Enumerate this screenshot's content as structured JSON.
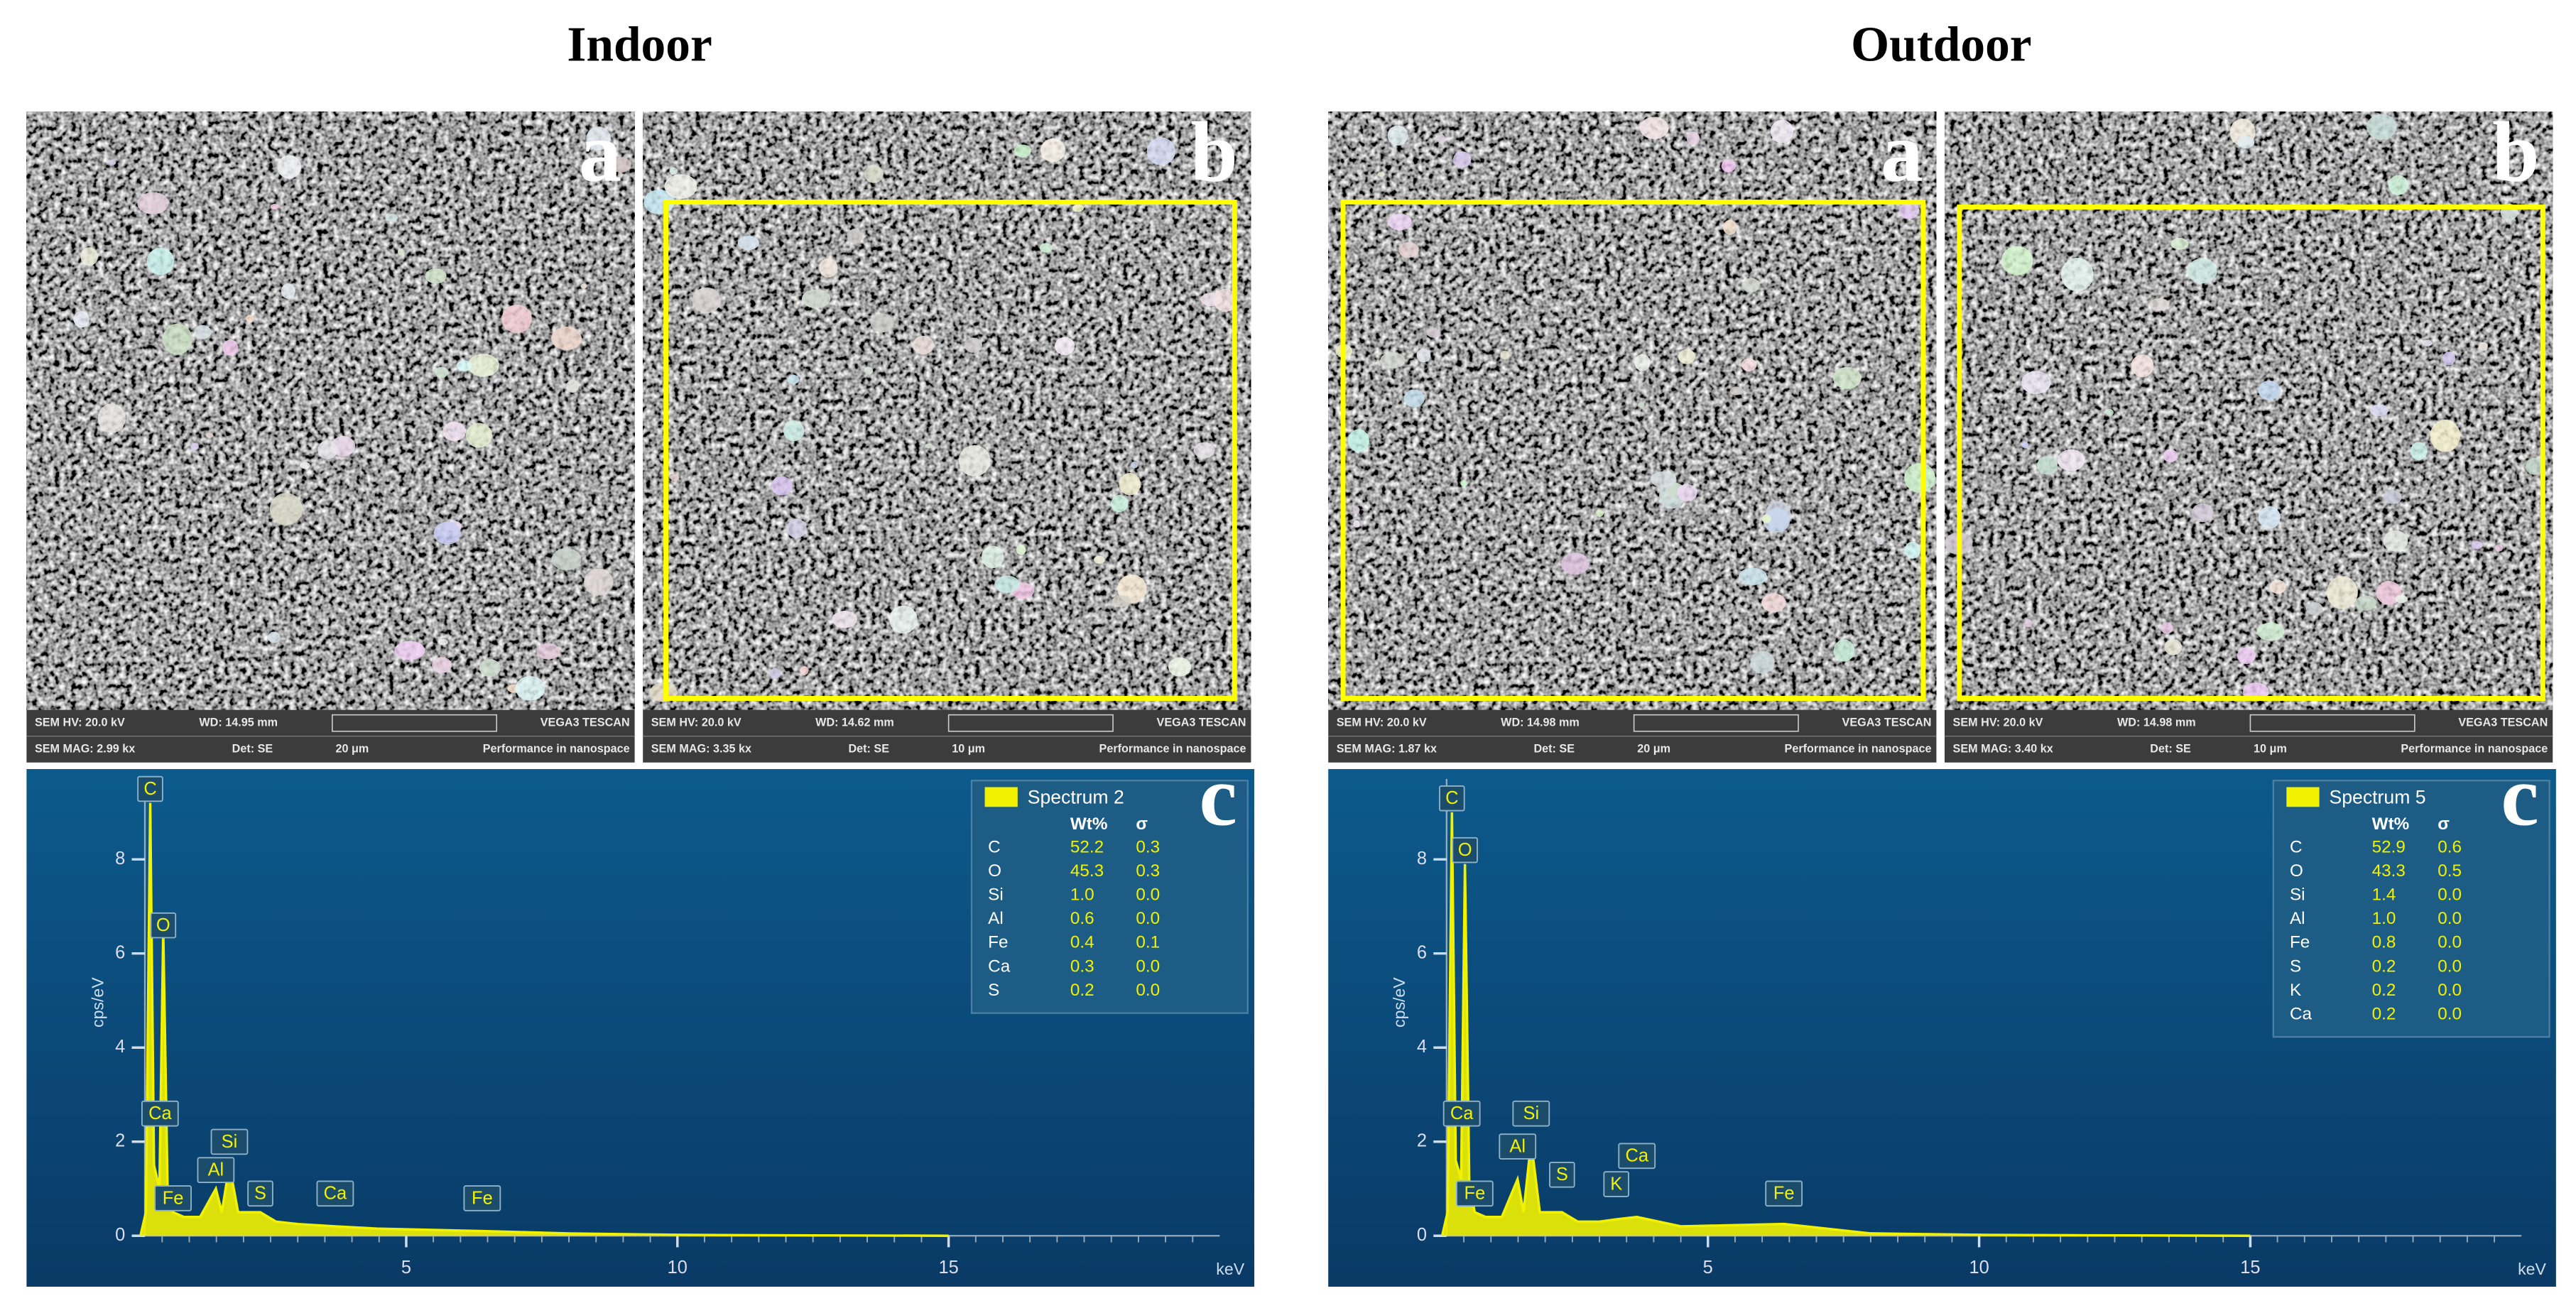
{
  "figure": {
    "panels": [
      {
        "title": "Indoor",
        "images": [
          {
            "letter": "a",
            "info": [
              [
                "SEM HV: 20.0 kV",
                "WD: 14.95 mm",
                "VEGA3 TESCAN"
              ],
              [
                "SEM MAG: 2.99 kx",
                "Det: SE",
                "20 μm",
                "Performance in nanospace"
              ]
            ]
          },
          {
            "letter": "b",
            "info": [
              [
                "SEM HV: 20.0 kV",
                "WD: 14.62 mm",
                "VEGA3 TESCAN"
              ],
              [
                "SEM MAG: 3.35 kx",
                "Det: SE",
                "10 μm",
                "Performance in nanospace"
              ]
            ]
          }
        ]
      },
      {
        "title": "Outdoor",
        "images": [
          {
            "letter": "a",
            "info": [
              [
                "SEM HV: 20.0 kV",
                "WD: 14.98 mm",
                "VEGA3 TESCAN"
              ],
              [
                "SEM MAG: 1.87 kx",
                "Det: SE",
                "20 μm",
                "Performance in nanospace"
              ]
            ]
          },
          {
            "letter": "b",
            "info": [
              [
                "SEM HV: 20.0 kV",
                "WD: 14.98 mm",
                "VEGA3 TESCAN"
              ],
              [
                "SEM MAG: 3.40 kx",
                "Det: SE",
                "10 μm",
                "Performance in nanospace"
              ]
            ]
          }
        ]
      }
    ]
  },
  "chart_data": [
    {
      "type": "area",
      "panel_letter": "c",
      "ylabel": "cps/eV",
      "xlabel": "keV",
      "xlim": [
        0,
        20
      ],
      "ylim": [
        0,
        9.5
      ],
      "xticks": [
        5,
        10,
        15
      ],
      "yticks": [
        0,
        2,
        4,
        6,
        8
      ],
      "series": [
        {
          "name": "Spectrum 2",
          "color": "#f2f200",
          "x": [
            0.1,
            0.2,
            0.28,
            0.35,
            0.45,
            0.52,
            0.6,
            0.7,
            0.9,
            1.2,
            1.49,
            1.6,
            1.74,
            1.9,
            2.31,
            2.6,
            3.0,
            3.69,
            4.5,
            6.4,
            8,
            10,
            12,
            15
          ],
          "values": [
            0,
            0.5,
            9.2,
            1.5,
            1.0,
            6.5,
            1.0,
            0.5,
            0.4,
            0.4,
            1.0,
            0.5,
            1.5,
            0.5,
            0.5,
            0.3,
            0.25,
            0.2,
            0.15,
            0.1,
            0.05,
            0.02,
            0.01,
            0
          ]
        }
      ],
      "legend_table": {
        "header": [
          "Wt%",
          "σ"
        ],
        "rows": [
          [
            "C",
            "52.2",
            "0.3"
          ],
          [
            "O",
            "45.3",
            "0.3"
          ],
          [
            "Si",
            "1.0",
            "0.0"
          ],
          [
            "Al",
            "0.6",
            "0.0"
          ],
          [
            "Fe",
            "0.4",
            "0.1"
          ],
          [
            "Ca",
            "0.3",
            "0.0"
          ],
          [
            "S",
            "0.2",
            "0.0"
          ]
        ]
      },
      "peak_labels": [
        {
          "label": "C",
          "x": 0.28,
          "y": 9.2
        },
        {
          "label": "O",
          "x": 0.52,
          "y": 6.3
        },
        {
          "label": "Ca",
          "x": 0.34,
          "y": 2.3
        },
        {
          "label": "Fe",
          "x": 0.7,
          "y": 0.5
        },
        {
          "label": "Al",
          "x": 1.49,
          "y": 1.1
        },
        {
          "label": "Si",
          "x": 1.74,
          "y": 1.7
        },
        {
          "label": "S",
          "x": 2.31,
          "y": 0.6
        },
        {
          "label": "Ca",
          "x": 3.69,
          "y": 0.6
        },
        {
          "label": "Fe",
          "x": 6.4,
          "y": 0.5
        }
      ]
    },
    {
      "type": "area",
      "panel_letter": "c",
      "ylabel": "cps/eV",
      "xlabel": "keV",
      "xlim": [
        0,
        20
      ],
      "ylim": [
        0,
        9.5
      ],
      "xticks": [
        5,
        10,
        15
      ],
      "yticks": [
        0,
        2,
        4,
        6,
        8
      ],
      "series": [
        {
          "name": "Spectrum 5",
          "color": "#f2f200",
          "x": [
            0.1,
            0.2,
            0.28,
            0.35,
            0.45,
            0.52,
            0.6,
            0.7,
            0.9,
            1.2,
            1.49,
            1.6,
            1.74,
            1.9,
            2.31,
            2.6,
            3.0,
            3.31,
            3.69,
            4.5,
            6.4,
            8,
            10,
            12,
            15
          ],
          "values": [
            0,
            0.5,
            9.0,
            1.6,
            1.2,
            7.9,
            1.1,
            0.5,
            0.4,
            0.4,
            1.2,
            0.5,
            2.0,
            0.5,
            0.5,
            0.3,
            0.3,
            0.35,
            0.4,
            0.2,
            0.25,
            0.05,
            0.02,
            0.01,
            0
          ]
        }
      ],
      "legend_table": {
        "header": [
          "Wt%",
          "σ"
        ],
        "rows": [
          [
            "C",
            "52.9",
            "0.6"
          ],
          [
            "O",
            "43.3",
            "0.5"
          ],
          [
            "Si",
            "1.4",
            "0.0"
          ],
          [
            "Al",
            "1.0",
            "0.0"
          ],
          [
            "Fe",
            "0.8",
            "0.0"
          ],
          [
            "S",
            "0.2",
            "0.0"
          ],
          [
            "K",
            "0.2",
            "0.0"
          ],
          [
            "Ca",
            "0.2",
            "0.0"
          ]
        ]
      },
      "peak_labels": [
        {
          "label": "C",
          "x": 0.28,
          "y": 9.0
        },
        {
          "label": "O",
          "x": 0.52,
          "y": 7.9
        },
        {
          "label": "Ca",
          "x": 0.34,
          "y": 2.3
        },
        {
          "label": "Fe",
          "x": 0.7,
          "y": 0.6
        },
        {
          "label": "Al",
          "x": 1.49,
          "y": 1.6
        },
        {
          "label": "Si",
          "x": 1.74,
          "y": 2.3
        },
        {
          "label": "S",
          "x": 2.31,
          "y": 1.0
        },
        {
          "label": "K",
          "x": 3.31,
          "y": 0.8
        },
        {
          "label": "Ca",
          "x": 3.69,
          "y": 1.4
        },
        {
          "label": "Fe",
          "x": 6.4,
          "y": 0.6
        }
      ]
    }
  ]
}
